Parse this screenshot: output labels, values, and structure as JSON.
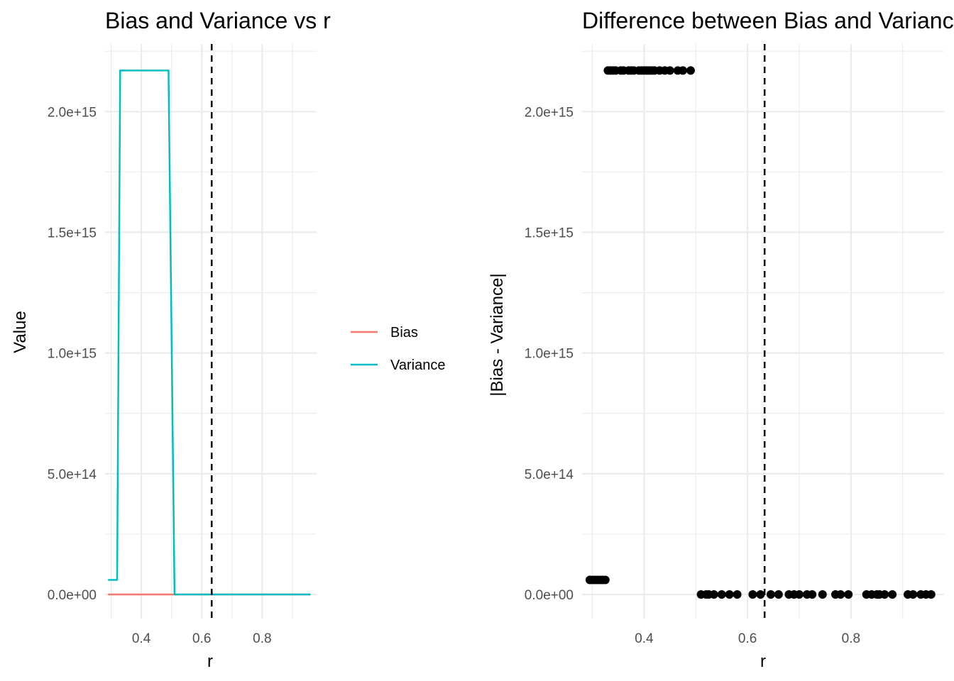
{
  "chart_data": [
    {
      "type": "line",
      "title": "Bias and Variance vs r",
      "xlabel": "r",
      "ylabel": "Value",
      "xlim": [
        0.28,
        0.98
      ],
      "ylim": [
        -100000000000000.0,
        2280000000000000.0
      ],
      "x_ticks": [
        0.4,
        0.6,
        0.8
      ],
      "x_tick_labels": [
        "0.4",
        "0.6",
        "0.8"
      ],
      "y_ticks": [
        0,
        500000000000000.0,
        1000000000000000.0,
        1500000000000000.0,
        2000000000000000.0
      ],
      "y_tick_labels": [
        "0.0e+00",
        "5.0e+14",
        "1.0e+15",
        "1.5e+15",
        "2.0e+15"
      ],
      "grid": true,
      "reference_line": {
        "x": 0.633,
        "style": "dashed",
        "color": "#000000"
      },
      "legend": {
        "position": "right",
        "entries": [
          "Bias",
          "Variance"
        ]
      },
      "series": [
        {
          "name": "Bias",
          "color": "#F8766D",
          "x": [
            0.29,
            0.51,
            0.96
          ],
          "y": [
            0,
            0,
            0
          ]
        },
        {
          "name": "Variance",
          "color": "#00BFC4",
          "x": [
            0.29,
            0.32,
            0.33,
            0.49,
            0.51,
            0.96
          ],
          "y": [
            60000000000000.0,
            60000000000000.0,
            2170000000000000.0,
            2170000000000000.0,
            0,
            0
          ]
        }
      ]
    },
    {
      "type": "scatter",
      "title": "Difference between Bias and Variance",
      "xlabel": "r",
      "ylabel": "|Bias - Variance|",
      "xlim": [
        0.28,
        0.98
      ],
      "ylim": [
        -100000000000000.0,
        2280000000000000.0
      ],
      "x_ticks": [
        0.4,
        0.6,
        0.8
      ],
      "x_tick_labels": [
        "0.4",
        "0.6",
        "0.8"
      ],
      "y_ticks": [
        0,
        500000000000000.0,
        1000000000000000.0,
        1500000000000000.0,
        2000000000000000.0
      ],
      "y_tick_labels": [
        "0.0e+00",
        "5.0e+14",
        "1.0e+15",
        "1.5e+15",
        "2.0e+15"
      ],
      "grid": true,
      "reference_line": {
        "x": 0.633,
        "style": "dashed",
        "color": "#000000"
      },
      "series": [
        {
          "color": "#000000",
          "x": [
            0.295,
            0.3,
            0.305,
            0.31,
            0.315,
            0.32,
            0.325,
            0.33,
            0.335,
            0.34,
            0.345,
            0.355,
            0.36,
            0.37,
            0.375,
            0.38,
            0.39,
            0.395,
            0.4,
            0.405,
            0.41,
            0.415,
            0.42,
            0.43,
            0.44,
            0.45,
            0.465,
            0.475,
            0.49,
            0.51,
            0.52,
            0.525,
            0.535,
            0.55,
            0.565,
            0.58,
            0.61,
            0.625,
            0.645,
            0.66,
            0.68,
            0.69,
            0.7,
            0.715,
            0.725,
            0.745,
            0.77,
            0.78,
            0.795,
            0.83,
            0.84,
            0.85,
            0.855,
            0.865,
            0.88,
            0.91,
            0.92,
            0.935,
            0.945,
            0.955
          ],
          "y": [
            60000000000000.0,
            60000000000000.0,
            60000000000000.0,
            60000000000000.0,
            60000000000000.0,
            60000000000000.0,
            60000000000000.0,
            2170000000000000.0,
            2170000000000000.0,
            2170000000000000.0,
            2170000000000000.0,
            2170000000000000.0,
            2170000000000000.0,
            2170000000000000.0,
            2170000000000000.0,
            2170000000000000.0,
            2170000000000000.0,
            2170000000000000.0,
            2170000000000000.0,
            2170000000000000.0,
            2170000000000000.0,
            2170000000000000.0,
            2170000000000000.0,
            2170000000000000.0,
            2170000000000000.0,
            2170000000000000.0,
            2170000000000000.0,
            2170000000000000.0,
            2170000000000000.0,
            0,
            0,
            0,
            0,
            0,
            0,
            0,
            0,
            0,
            0,
            0,
            0,
            0,
            0,
            0,
            0,
            0,
            0,
            0,
            0,
            0,
            0,
            0,
            0,
            0,
            0,
            0,
            0,
            0,
            0,
            0
          ]
        }
      ]
    }
  ]
}
